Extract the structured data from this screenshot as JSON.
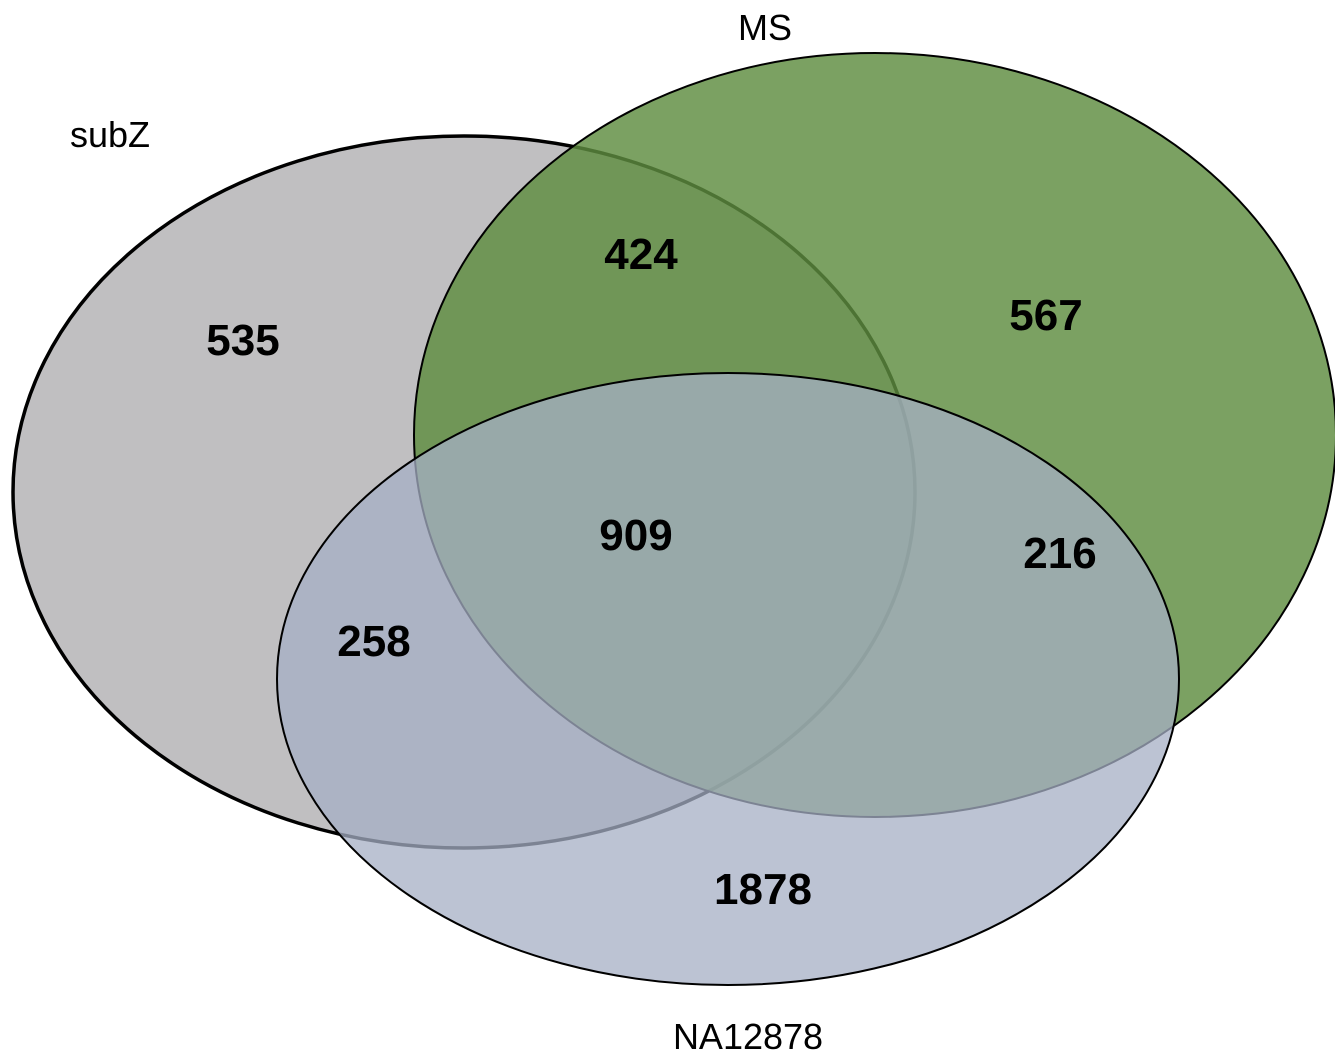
{
  "diagram": {
    "type": "venn-3",
    "sets": {
      "subz": {
        "label": "subZ",
        "fill": "#c0bfc1",
        "stroke": "#000000"
      },
      "ms": {
        "label": "MS",
        "fill": "#5e8c3f",
        "stroke": "#000000"
      },
      "na12878": {
        "label": "NA12878",
        "fill": "#a5afc4",
        "stroke": "#000000"
      }
    },
    "regions": {
      "subz_only": "535",
      "ms_only": "567",
      "na12878_only": "1878",
      "subz_ms": "424",
      "subz_na12878": "258",
      "ms_na12878": "216",
      "all_three": "909"
    }
  }
}
